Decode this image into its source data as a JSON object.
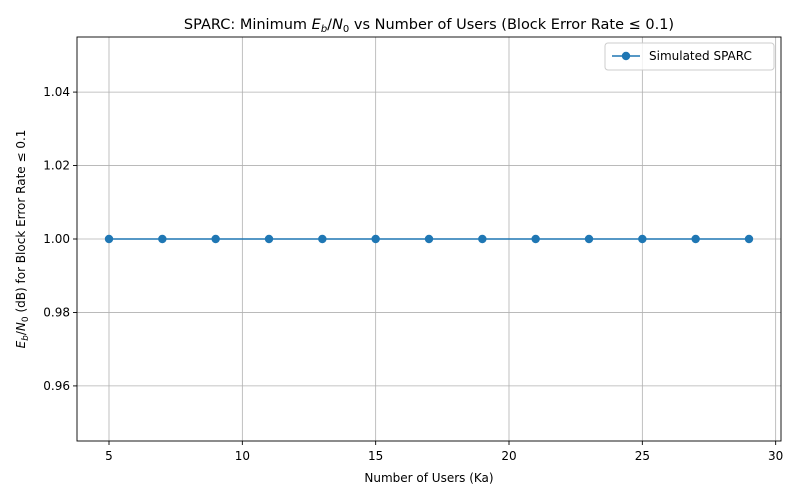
{
  "chart_data": {
    "type": "line",
    "title_parts": {
      "prefix": "SPARC: Minimum ",
      "e": "E",
      "e_sub": "b",
      "slash": "/",
      "n": "N",
      "n_sub": "0",
      "suffix": " vs Number of Users (Block Error Rate ≤ 0.1)"
    },
    "xlabel": "Number of Users (Ka)",
    "ylabel_parts": {
      "e": "E",
      "e_sub": "b",
      "slash": "/",
      "n": "N",
      "n_sub": "0",
      "suffix": " (dB) for Block Error Rate ≤ 0.1"
    },
    "xlim": [
      3.8,
      30.2
    ],
    "ylim": [
      0.945,
      1.055
    ],
    "xticks": [
      5,
      10,
      15,
      20,
      25,
      30
    ],
    "xtick_labels": [
      "5",
      "10",
      "15",
      "20",
      "25",
      "30"
    ],
    "yticks": [
      0.96,
      0.98,
      1.0,
      1.02,
      1.04
    ],
    "ytick_labels": [
      "0.96",
      "0.98",
      "1.00",
      "1.02",
      "1.04"
    ],
    "grid": true,
    "legend_placement": "top-right",
    "series": [
      {
        "name": "Simulated SPARC",
        "color": "#1f77b4",
        "marker": "circle",
        "x": [
          5,
          7,
          9,
          11,
          13,
          15,
          17,
          19,
          21,
          23,
          25,
          27,
          29
        ],
        "y": [
          1.0,
          1.0,
          1.0,
          1.0,
          1.0,
          1.0,
          1.0,
          1.0,
          1.0,
          1.0,
          1.0,
          1.0,
          1.0
        ]
      }
    ]
  }
}
